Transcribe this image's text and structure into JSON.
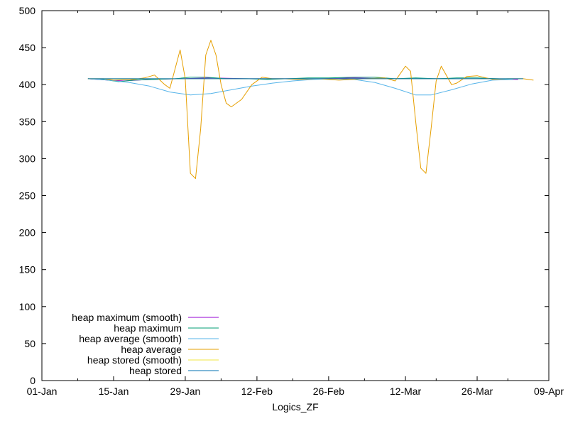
{
  "chart_data": {
    "type": "line",
    "title": "",
    "xlabel": "Logics_ZF",
    "ylabel": "",
    "x_axis": {
      "type": "date",
      "range": [
        "2020-01-01",
        "2020-04-09"
      ],
      "ticks": [
        {
          "date": "2020-01-01",
          "label": "01-Jan"
        },
        {
          "date": "2020-01-15",
          "label": "15-Jan"
        },
        {
          "date": "2020-01-29",
          "label": "29-Jan"
        },
        {
          "date": "2020-02-12",
          "label": "12-Feb"
        },
        {
          "date": "2020-02-26",
          "label": "26-Feb"
        },
        {
          "date": "2020-03-12",
          "label": "12-Mar"
        },
        {
          "date": "2020-03-26",
          "label": "26-Mar"
        },
        {
          "date": "2020-04-09",
          "label": "09-Apr"
        }
      ]
    },
    "y_axis": {
      "range": [
        0,
        500
      ],
      "ticks": [
        0,
        50,
        100,
        150,
        200,
        250,
        300,
        350,
        400,
        450,
        500
      ]
    },
    "grid": false,
    "legend_position": "bottom-left",
    "series": [
      {
        "name": "heap maximum (smooth)",
        "color": "#9400d3",
        "points": [
          [
            "2020-01-10",
            408
          ],
          [
            "2020-01-14",
            406
          ],
          [
            "2020-01-17",
            405
          ],
          [
            "2020-01-22",
            407
          ],
          [
            "2020-01-28",
            408
          ],
          [
            "2020-02-03",
            409
          ],
          [
            "2020-02-10",
            408
          ],
          [
            "2020-02-17",
            408
          ],
          [
            "2020-02-24",
            408
          ],
          [
            "2020-03-02",
            409
          ],
          [
            "2020-03-09",
            408
          ],
          [
            "2020-03-16",
            408
          ],
          [
            "2020-03-22",
            408
          ],
          [
            "2020-03-29",
            408
          ],
          [
            "2020-04-03",
            407
          ]
        ]
      },
      {
        "name": "heap maximum",
        "color": "#009e73",
        "points": [
          [
            "2020-01-10",
            408
          ],
          [
            "2020-01-13",
            407
          ],
          [
            "2020-01-16",
            404
          ],
          [
            "2020-01-19",
            406
          ],
          [
            "2020-01-23",
            407
          ],
          [
            "2020-01-27",
            408
          ],
          [
            "2020-01-30",
            410
          ],
          [
            "2020-02-02",
            410
          ],
          [
            "2020-02-06",
            408
          ],
          [
            "2020-02-10",
            408
          ],
          [
            "2020-02-14",
            407
          ],
          [
            "2020-02-18",
            408
          ],
          [
            "2020-02-22",
            409
          ],
          [
            "2020-02-26",
            409
          ],
          [
            "2020-03-02",
            410
          ],
          [
            "2020-03-06",
            410
          ],
          [
            "2020-03-10",
            408
          ],
          [
            "2020-03-14",
            409
          ],
          [
            "2020-03-18",
            408
          ],
          [
            "2020-03-22",
            409
          ],
          [
            "2020-03-26",
            409
          ],
          [
            "2020-03-30",
            408
          ],
          [
            "2020-04-02",
            407
          ]
        ]
      },
      {
        "name": "heap average (smooth)",
        "color": "#56b4e9",
        "points": [
          [
            "2020-01-10",
            408
          ],
          [
            "2020-01-14",
            406
          ],
          [
            "2020-01-18",
            403
          ],
          [
            "2020-01-22",
            398
          ],
          [
            "2020-01-26",
            390
          ],
          [
            "2020-01-30",
            386
          ],
          [
            "2020-02-03",
            388
          ],
          [
            "2020-02-07",
            393
          ],
          [
            "2020-02-11",
            398
          ],
          [
            "2020-02-15",
            402
          ],
          [
            "2020-02-19",
            405
          ],
          [
            "2020-02-23",
            407
          ],
          [
            "2020-02-27",
            408
          ],
          [
            "2020-03-02",
            407
          ],
          [
            "2020-03-06",
            403
          ],
          [
            "2020-03-10",
            395
          ],
          [
            "2020-03-14",
            386
          ],
          [
            "2020-03-17",
            386
          ],
          [
            "2020-03-21",
            393
          ],
          [
            "2020-03-25",
            401
          ],
          [
            "2020-03-29",
            406
          ],
          [
            "2020-04-02",
            407
          ]
        ]
      },
      {
        "name": "heap average",
        "color": "#e69f00",
        "points": [
          [
            "2020-01-10",
            408
          ],
          [
            "2020-01-13",
            408
          ],
          [
            "2020-01-15",
            406
          ],
          [
            "2020-01-19",
            407
          ],
          [
            "2020-01-21",
            409
          ],
          [
            "2020-01-23",
            413
          ],
          [
            "2020-01-25",
            400
          ],
          [
            "2020-01-26",
            395
          ],
          [
            "2020-01-28",
            447
          ],
          [
            "2020-01-29",
            408
          ],
          [
            "2020-01-30",
            280
          ],
          [
            "2020-01-31",
            273
          ],
          [
            "2020-02-01",
            340
          ],
          [
            "2020-02-02",
            440
          ],
          [
            "2020-02-03",
            460
          ],
          [
            "2020-02-04",
            440
          ],
          [
            "2020-02-05",
            400
          ],
          [
            "2020-02-06",
            375
          ],
          [
            "2020-02-07",
            370
          ],
          [
            "2020-02-09",
            380
          ],
          [
            "2020-02-11",
            400
          ],
          [
            "2020-02-13",
            410
          ],
          [
            "2020-02-15",
            408
          ],
          [
            "2020-02-17",
            408
          ],
          [
            "2020-02-20",
            407
          ],
          [
            "2020-02-24",
            408
          ],
          [
            "2020-02-28",
            406
          ],
          [
            "2020-03-04",
            408
          ],
          [
            "2020-03-08",
            409
          ],
          [
            "2020-03-10",
            405
          ],
          [
            "2020-03-12",
            425
          ],
          [
            "2020-03-13",
            418
          ],
          [
            "2020-03-14",
            350
          ],
          [
            "2020-03-15",
            287
          ],
          [
            "2020-03-16",
            280
          ],
          [
            "2020-03-17",
            340
          ],
          [
            "2020-03-18",
            405
          ],
          [
            "2020-03-19",
            425
          ],
          [
            "2020-03-21",
            400
          ],
          [
            "2020-03-22",
            402
          ],
          [
            "2020-03-24",
            411
          ],
          [
            "2020-03-26",
            412
          ],
          [
            "2020-03-29",
            407
          ],
          [
            "2020-04-01",
            408
          ],
          [
            "2020-04-04",
            408
          ],
          [
            "2020-04-06",
            406
          ]
        ]
      },
      {
        "name": "heap stored (smooth)",
        "color": "#f0e442",
        "points": [
          [
            "2020-01-10",
            408
          ],
          [
            "2020-01-20",
            408
          ],
          [
            "2020-02-01",
            408
          ],
          [
            "2020-02-15",
            408
          ],
          [
            "2020-03-01",
            408
          ],
          [
            "2020-03-15",
            408
          ],
          [
            "2020-03-29",
            408
          ],
          [
            "2020-04-04",
            408
          ]
        ]
      },
      {
        "name": "heap stored",
        "color": "#0072b2",
        "points": [
          [
            "2020-01-10",
            408
          ],
          [
            "2020-01-20",
            408
          ],
          [
            "2020-02-01",
            408
          ],
          [
            "2020-02-15",
            408
          ],
          [
            "2020-03-01",
            408
          ],
          [
            "2020-03-15",
            408
          ],
          [
            "2020-03-29",
            408
          ],
          [
            "2020-04-04",
            408
          ]
        ]
      }
    ]
  }
}
